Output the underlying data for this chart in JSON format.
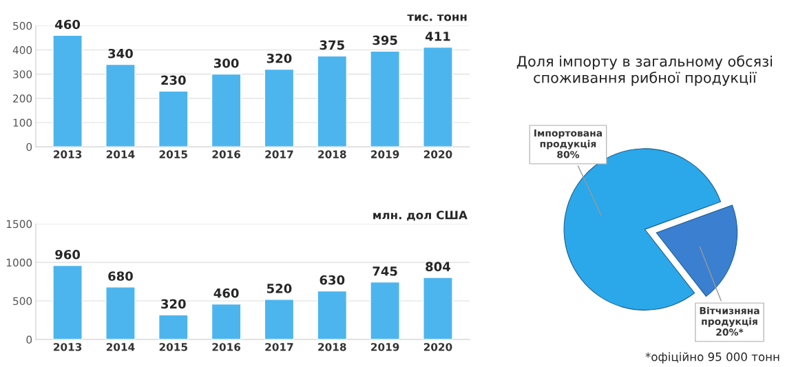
{
  "chart_data": [
    {
      "type": "bar",
      "categories": [
        "2013",
        "2014",
        "2015",
        "2016",
        "2017",
        "2018",
        "2019",
        "2020"
      ],
      "values": [
        460,
        340,
        230,
        300,
        320,
        375,
        395,
        411
      ],
      "color": "#4db5ee",
      "ylim": [
        0,
        500
      ],
      "yticks": [
        0,
        100,
        200,
        300,
        400,
        500
      ],
      "grid": "y",
      "data_labels": true,
      "annotations": [
        "тис. тонн"
      ]
    },
    {
      "type": "bar",
      "categories": [
        "2013",
        "2014",
        "2015",
        "2016",
        "2017",
        "2018",
        "2019",
        "2020"
      ],
      "values": [
        960,
        680,
        320,
        460,
        520,
        630,
        745,
        804
      ],
      "color": "#4db5ee",
      "ylim": [
        0,
        1500
      ],
      "yticks": [
        0,
        500,
        1000,
        1500
      ],
      "grid": "y",
      "data_labels": true,
      "annotations": [
        "млн. дол США"
      ]
    },
    {
      "type": "pie",
      "title": "Доля імпорту в загальному обсязі споживання рибної продукції",
      "categories": [
        "Імпортована продукція",
        "Вітчизняна продукція"
      ],
      "values": [
        80,
        20
      ],
      "value_labels": [
        "80%",
        "20%*"
      ],
      "colors": [
        "#2aa8ea",
        "#3b7fd1"
      ],
      "annotations": [
        "*офіційно 95 000 тонн"
      ]
    }
  ]
}
